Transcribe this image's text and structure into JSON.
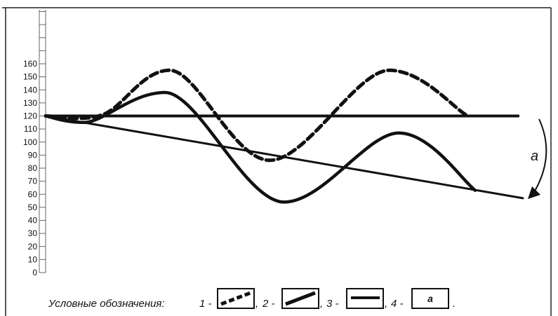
{
  "chart_data": {
    "type": "line",
    "y_ticks": [
      0,
      10,
      20,
      30,
      40,
      50,
      60,
      70,
      80,
      90,
      100,
      110,
      120,
      130,
      140,
      150,
      160
    ],
    "ylim": [
      0,
      160
    ],
    "grid": false,
    "series": [
      {
        "style": "dashed",
        "points": [
          [
            0,
            120
          ],
          [
            0.12,
            121
          ],
          [
            0.26,
            155
          ],
          [
            0.47,
            86
          ],
          [
            0.72,
            155
          ],
          [
            0.88,
            121
          ]
        ]
      },
      {
        "style": "solid-thin",
        "points": [
          [
            0,
            120
          ],
          [
            1,
            57
          ]
        ]
      },
      {
        "style": "solid-wavy",
        "points": [
          [
            0,
            120
          ],
          [
            0.08,
            115
          ],
          [
            0.25,
            138
          ],
          [
            0.5,
            54
          ],
          [
            0.74,
            107
          ],
          [
            0.9,
            63
          ]
        ]
      },
      {
        "style": "solid-horizontal",
        "points": [
          [
            0,
            120
          ],
          [
            0.99,
            120
          ]
        ]
      }
    ],
    "annotation": {
      "label": "a"
    }
  },
  "legend": {
    "title": "Условные обозначения",
    "items": [
      {
        "number": "1 -",
        "separator": ","
      },
      {
        "number": "2 -",
        "separator": ","
      },
      {
        "number": "3 -",
        "separator": ","
      },
      {
        "number": "4 -",
        "separator": ".",
        "box_label": "a"
      }
    ]
  }
}
